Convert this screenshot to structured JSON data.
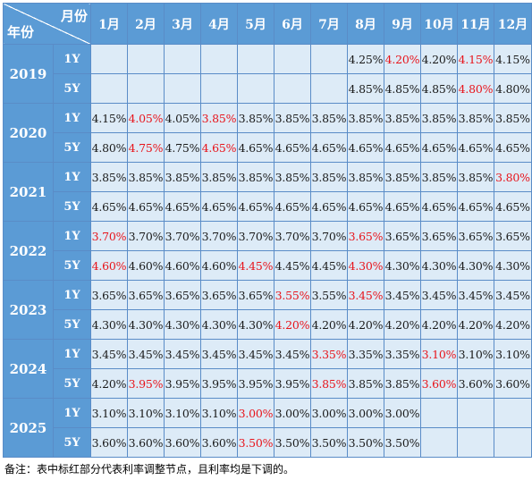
{
  "header": {
    "corner_month": "月份",
    "corner_year": "年份",
    "months": [
      "1月",
      "2月",
      "3月",
      "4月",
      "5月",
      "6月",
      "7月",
      "8月",
      "9月",
      "10月",
      "11月",
      "12月"
    ]
  },
  "colors": {
    "header_bg": "#5b9bd5",
    "cell_bg": "#ddebf7",
    "adjust_red": "#e8141b"
  },
  "rows": [
    {
      "year": "2019",
      "term": "1Y",
      "cells": [
        {
          "v": "",
          "r": false
        },
        {
          "v": "",
          "r": false
        },
        {
          "v": "",
          "r": false
        },
        {
          "v": "",
          "r": false
        },
        {
          "v": "",
          "r": false
        },
        {
          "v": "",
          "r": false
        },
        {
          "v": "",
          "r": false
        },
        {
          "v": "4.25%",
          "r": false
        },
        {
          "v": "4.20%",
          "r": true
        },
        {
          "v": "4.20%",
          "r": false
        },
        {
          "v": "4.15%",
          "r": true
        },
        {
          "v": "4.15%",
          "r": false
        }
      ]
    },
    {
      "year": "2019",
      "term": "5Y",
      "cells": [
        {
          "v": "",
          "r": false
        },
        {
          "v": "",
          "r": false
        },
        {
          "v": "",
          "r": false
        },
        {
          "v": "",
          "r": false
        },
        {
          "v": "",
          "r": false
        },
        {
          "v": "",
          "r": false
        },
        {
          "v": "",
          "r": false
        },
        {
          "v": "4.85%",
          "r": false
        },
        {
          "v": "4.85%",
          "r": false
        },
        {
          "v": "4.85%",
          "r": false
        },
        {
          "v": "4.80%",
          "r": true
        },
        {
          "v": "4.80%",
          "r": false
        }
      ]
    },
    {
      "year": "2020",
      "term": "1Y",
      "cells": [
        {
          "v": "4.15%",
          "r": false
        },
        {
          "v": "4.05%",
          "r": true
        },
        {
          "v": "4.05%",
          "r": false
        },
        {
          "v": "3.85%",
          "r": true
        },
        {
          "v": "3.85%",
          "r": false
        },
        {
          "v": "3.85%",
          "r": false
        },
        {
          "v": "3.85%",
          "r": false
        },
        {
          "v": "3.85%",
          "r": false
        },
        {
          "v": "3.85%",
          "r": false
        },
        {
          "v": "3.85%",
          "r": false
        },
        {
          "v": "3.85%",
          "r": false
        },
        {
          "v": "3.85%",
          "r": false
        }
      ]
    },
    {
      "year": "2020",
      "term": "5Y",
      "cells": [
        {
          "v": "4.80%",
          "r": false
        },
        {
          "v": "4.75%",
          "r": true
        },
        {
          "v": "4.75%",
          "r": false
        },
        {
          "v": "4.65%",
          "r": true
        },
        {
          "v": "4.65%",
          "r": false
        },
        {
          "v": "4.65%",
          "r": false
        },
        {
          "v": "4.65%",
          "r": false
        },
        {
          "v": "4.65%",
          "r": false
        },
        {
          "v": "4.65%",
          "r": false
        },
        {
          "v": "4.65%",
          "r": false
        },
        {
          "v": "4.65%",
          "r": false
        },
        {
          "v": "4.65%",
          "r": false
        }
      ]
    },
    {
      "year": "2021",
      "term": "1Y",
      "cells": [
        {
          "v": "3.85%",
          "r": false
        },
        {
          "v": "3.85%",
          "r": false
        },
        {
          "v": "3.85%",
          "r": false
        },
        {
          "v": "3.85%",
          "r": false
        },
        {
          "v": "3.85%",
          "r": false
        },
        {
          "v": "3.85%",
          "r": false
        },
        {
          "v": "3.85%",
          "r": false
        },
        {
          "v": "3.85%",
          "r": false
        },
        {
          "v": "3.85%",
          "r": false
        },
        {
          "v": "3.85%",
          "r": false
        },
        {
          "v": "3.85%",
          "r": false
        },
        {
          "v": "3.80%",
          "r": true
        }
      ]
    },
    {
      "year": "2021",
      "term": "5Y",
      "cells": [
        {
          "v": "4.65%",
          "r": false
        },
        {
          "v": "4.65%",
          "r": false
        },
        {
          "v": "4.65%",
          "r": false
        },
        {
          "v": "4.65%",
          "r": false
        },
        {
          "v": "4.65%",
          "r": false
        },
        {
          "v": "4.65%",
          "r": false
        },
        {
          "v": "4.65%",
          "r": false
        },
        {
          "v": "4.65%",
          "r": false
        },
        {
          "v": "4.65%",
          "r": false
        },
        {
          "v": "4.65%",
          "r": false
        },
        {
          "v": "4.65%",
          "r": false
        },
        {
          "v": "4.65%",
          "r": false
        }
      ]
    },
    {
      "year": "2022",
      "term": "1Y",
      "cells": [
        {
          "v": "3.70%",
          "r": true
        },
        {
          "v": "3.70%",
          "r": false
        },
        {
          "v": "3.70%",
          "r": false
        },
        {
          "v": "3.70%",
          "r": false
        },
        {
          "v": "3.70%",
          "r": false
        },
        {
          "v": "3.70%",
          "r": false
        },
        {
          "v": "3.70%",
          "r": false
        },
        {
          "v": "3.65%",
          "r": true
        },
        {
          "v": "3.65%",
          "r": false
        },
        {
          "v": "3.65%",
          "r": false
        },
        {
          "v": "3.65%",
          "r": false
        },
        {
          "v": "3.65%",
          "r": false
        }
      ]
    },
    {
      "year": "2022",
      "term": "5Y",
      "cells": [
        {
          "v": "4.60%",
          "r": true
        },
        {
          "v": "4.60%",
          "r": false
        },
        {
          "v": "4.60%",
          "r": false
        },
        {
          "v": "4.60%",
          "r": false
        },
        {
          "v": "4.45%",
          "r": true
        },
        {
          "v": "4.45%",
          "r": false
        },
        {
          "v": "4.45%",
          "r": false
        },
        {
          "v": "4.30%",
          "r": true
        },
        {
          "v": "4.30%",
          "r": false
        },
        {
          "v": "4.30%",
          "r": false
        },
        {
          "v": "4.30%",
          "r": false
        },
        {
          "v": "4.30%",
          "r": false
        }
      ]
    },
    {
      "year": "2023",
      "term": "1Y",
      "cells": [
        {
          "v": "3.65%",
          "r": false
        },
        {
          "v": "3.65%",
          "r": false
        },
        {
          "v": "3.65%",
          "r": false
        },
        {
          "v": "3.65%",
          "r": false
        },
        {
          "v": "3.65%",
          "r": false
        },
        {
          "v": "3.55%",
          "r": true
        },
        {
          "v": "3.55%",
          "r": false
        },
        {
          "v": "3.45%",
          "r": true
        },
        {
          "v": "3.45%",
          "r": false
        },
        {
          "v": "3.45%",
          "r": false
        },
        {
          "v": "3.45%",
          "r": false
        },
        {
          "v": "3.45%",
          "r": false
        }
      ]
    },
    {
      "year": "2023",
      "term": "5Y",
      "cells": [
        {
          "v": "4.30%",
          "r": false
        },
        {
          "v": "4.30%",
          "r": false
        },
        {
          "v": "4.30%",
          "r": false
        },
        {
          "v": "4.30%",
          "r": false
        },
        {
          "v": "4.30%",
          "r": false
        },
        {
          "v": "4.20%",
          "r": true
        },
        {
          "v": "4.20%",
          "r": false
        },
        {
          "v": "4.20%",
          "r": false
        },
        {
          "v": "4.20%",
          "r": false
        },
        {
          "v": "4.20%",
          "r": false
        },
        {
          "v": "4.20%",
          "r": false
        },
        {
          "v": "4.20%",
          "r": false
        }
      ]
    },
    {
      "year": "2024",
      "term": "1Y",
      "cells": [
        {
          "v": "3.45%",
          "r": false
        },
        {
          "v": "3.45%",
          "r": false
        },
        {
          "v": "3.45%",
          "r": false
        },
        {
          "v": "3.45%",
          "r": false
        },
        {
          "v": "3.45%",
          "r": false
        },
        {
          "v": "3.45%",
          "r": false
        },
        {
          "v": "3.35%",
          "r": true
        },
        {
          "v": "3.35%",
          "r": false
        },
        {
          "v": "3.35%",
          "r": false
        },
        {
          "v": "3.10%",
          "r": true
        },
        {
          "v": "3.10%",
          "r": false
        },
        {
          "v": "3.10%",
          "r": false
        }
      ]
    },
    {
      "year": "2024",
      "term": "5Y",
      "cells": [
        {
          "v": "4.20%",
          "r": false
        },
        {
          "v": "3.95%",
          "r": true
        },
        {
          "v": "3.95%",
          "r": false
        },
        {
          "v": "3.95%",
          "r": false
        },
        {
          "v": "3.95%",
          "r": false
        },
        {
          "v": "3.95%",
          "r": false
        },
        {
          "v": "3.85%",
          "r": true
        },
        {
          "v": "3.85%",
          "r": false
        },
        {
          "v": "3.85%",
          "r": false
        },
        {
          "v": "3.60%",
          "r": true
        },
        {
          "v": "3.60%",
          "r": false
        },
        {
          "v": "3.60%",
          "r": false
        }
      ]
    },
    {
      "year": "2025",
      "term": "1Y",
      "cells": [
        {
          "v": "3.10%",
          "r": false
        },
        {
          "v": "3.10%",
          "r": false
        },
        {
          "v": "3.10%",
          "r": false
        },
        {
          "v": "3.10%",
          "r": false
        },
        {
          "v": "3.00%",
          "r": true
        },
        {
          "v": "3.00%",
          "r": false
        },
        {
          "v": "3.00%",
          "r": false
        },
        {
          "v": "3.00%",
          "r": false
        },
        {
          "v": "3.00%",
          "r": false
        },
        {
          "v": "",
          "r": false
        },
        {
          "v": "",
          "r": false
        },
        {
          "v": "",
          "r": false
        }
      ]
    },
    {
      "year": "2025",
      "term": "5Y",
      "cells": [
        {
          "v": "3.60%",
          "r": false
        },
        {
          "v": "3.60%",
          "r": false
        },
        {
          "v": "3.60%",
          "r": false
        },
        {
          "v": "3.60%",
          "r": false
        },
        {
          "v": "3.50%",
          "r": true
        },
        {
          "v": "3.50%",
          "r": false
        },
        {
          "v": "3.50%",
          "r": false
        },
        {
          "v": "3.50%",
          "r": false
        },
        {
          "v": "3.50%",
          "r": false
        },
        {
          "v": "",
          "r": false
        },
        {
          "v": "",
          "r": false
        },
        {
          "v": "",
          "r": false
        }
      ]
    }
  ],
  "note": "备注：表中标红部分代表利率调整节点，且利率均是下调的。"
}
